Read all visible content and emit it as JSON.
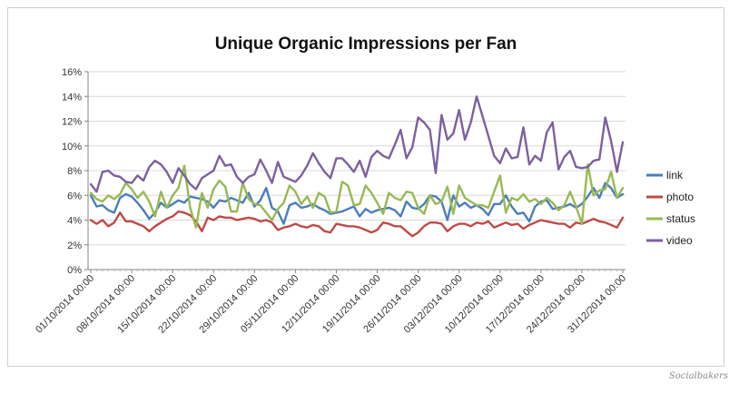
{
  "credit": "Socialbakers",
  "chart_data": {
    "type": "line",
    "title": "Unique Organic Impressions per Fan",
    "xlabel": "",
    "ylabel": "",
    "ylim": [
      0,
      16
    ],
    "y_unit": "%",
    "yticks": [
      0,
      2,
      4,
      6,
      8,
      10,
      12,
      14,
      16
    ],
    "ytick_labels": [
      "0%",
      "2%",
      "4%",
      "6%",
      "8%",
      "10%",
      "12%",
      "14%",
      "16%"
    ],
    "grid": "horizontal",
    "legend_position": "right",
    "x_tick_labels": [
      "01/10/2014 00:00",
      "08/10/2014 00:00",
      "15/10/2014 00:00",
      "22/10/2014 00:00",
      "29/10/2014 00:00",
      "05/11/2014 00:00",
      "12/11/2014 00:00",
      "19/11/2014 00:00",
      "26/11/2014 00:00",
      "03/12/2014 00:00",
      "10/12/2014 00:00",
      "17/12/2014 00:00",
      "24/12/2014 00:00",
      "31/12/2014 00:00"
    ],
    "x_start": "01/10/2014",
    "x_end": "31/12/2014",
    "series": [
      {
        "name": "link",
        "color": "#4a7ebb",
        "values": [
          6.0,
          5.1,
          5.2,
          4.8,
          4.6,
          5.8,
          6.1,
          5.9,
          5.4,
          4.8,
          4.1,
          4.6,
          5.4,
          5.0,
          5.3,
          5.6,
          5.4,
          5.9,
          5.8,
          5.7,
          5.5,
          5.0,
          5.6,
          5.5,
          5.8,
          5.6,
          5.4,
          6.2,
          5.1,
          5.6,
          6.6,
          5.0,
          4.7,
          3.7,
          5.2,
          5.4,
          5.0,
          5.1,
          5.3,
          5.0,
          4.8,
          4.5,
          4.6,
          4.7,
          4.9,
          5.1,
          4.3,
          4.9,
          4.6,
          4.8,
          4.9,
          5.0,
          4.8,
          4.3,
          5.5,
          5.0,
          4.9,
          5.3,
          6.0,
          5.9,
          5.5,
          4.0,
          6.0,
          5.1,
          5.4,
          5.0,
          5.2,
          4.9,
          4.4,
          5.3,
          5.3,
          6.0,
          5.1,
          4.5,
          4.6,
          3.9,
          5.1,
          5.5,
          5.6,
          4.9,
          5.0,
          5.1,
          5.3,
          5.0,
          5.3,
          5.9,
          6.6,
          5.8,
          7.0,
          6.6,
          5.8,
          6.1
        ]
      },
      {
        "name": "photo",
        "color": "#be4b48",
        "values": [
          4.0,
          3.7,
          4.0,
          3.5,
          3.8,
          4.6,
          3.9,
          3.9,
          3.7,
          3.5,
          3.1,
          3.5,
          3.8,
          4.1,
          4.3,
          4.7,
          4.6,
          4.4,
          3.9,
          3.1,
          4.2,
          4.0,
          4.3,
          4.2,
          4.2,
          4.0,
          4.1,
          4.2,
          4.1,
          3.9,
          4.0,
          3.8,
          3.2,
          3.4,
          3.5,
          3.7,
          3.5,
          3.4,
          3.6,
          3.5,
          3.1,
          3.0,
          3.7,
          3.6,
          3.5,
          3.5,
          3.4,
          3.2,
          3.0,
          3.2,
          3.8,
          3.7,
          3.5,
          3.5,
          3.1,
          2.7,
          3.0,
          3.5,
          3.8,
          3.8,
          3.7,
          3.1,
          3.5,
          3.7,
          3.7,
          3.5,
          3.8,
          3.7,
          3.9,
          3.4,
          3.6,
          3.8,
          3.6,
          3.7,
          3.3,
          3.6,
          3.8,
          4.0,
          3.9,
          3.8,
          3.7,
          3.7,
          3.4,
          3.8,
          3.7,
          3.9,
          4.1,
          3.9,
          3.8,
          3.6,
          3.4,
          4.2
        ]
      },
      {
        "name": "status",
        "color": "#98b954",
        "values": [
          6.2,
          5.7,
          5.5,
          6.0,
          5.7,
          6.1,
          7.0,
          6.5,
          5.8,
          6.3,
          5.5,
          4.3,
          6.3,
          5.0,
          6.0,
          6.6,
          8.4,
          5.0,
          3.4,
          6.2,
          5.0,
          6.5,
          7.2,
          6.7,
          4.7,
          4.7,
          7.0,
          5.7,
          5.3,
          5.2,
          4.6,
          4.0,
          4.9,
          5.4,
          6.8,
          6.3,
          5.3,
          5.9,
          5.0,
          6.2,
          5.9,
          4.6,
          4.7,
          7.1,
          6.8,
          5.2,
          5.3,
          6.8,
          6.2,
          5.4,
          4.5,
          6.2,
          5.8,
          5.6,
          6.3,
          6.2,
          5.0,
          4.5,
          6.0,
          5.3,
          5.5,
          6.7,
          4.5,
          6.8,
          5.8,
          5.5,
          5.2,
          5.2,
          5.0,
          6.3,
          7.6,
          4.6,
          5.8,
          5.6,
          6.1,
          5.5,
          5.7,
          5.3,
          5.8,
          5.4,
          4.8,
          5.2,
          6.3,
          5.1,
          3.7,
          8.5,
          6.0,
          6.4,
          6.5,
          7.9,
          5.8,
          6.6
        ]
      },
      {
        "name": "video",
        "color": "#7d60a0",
        "values": [
          6.9,
          6.3,
          7.9,
          8.0,
          7.6,
          7.5,
          7.1,
          7.0,
          7.6,
          7.2,
          8.3,
          8.8,
          8.5,
          7.9,
          7.0,
          8.2,
          7.6,
          6.9,
          6.5,
          7.4,
          7.7,
          8.0,
          9.2,
          8.4,
          8.5,
          7.5,
          7.0,
          7.5,
          7.7,
          8.9,
          8.0,
          7.0,
          8.7,
          7.5,
          7.3,
          7.1,
          7.6,
          8.4,
          9.4,
          8.6,
          7.9,
          7.4,
          9.0,
          9.0,
          8.5,
          7.9,
          8.8,
          7.5,
          9.1,
          9.6,
          9.2,
          9.0,
          10.1,
          11.3,
          9.0,
          9.9,
          12.3,
          11.9,
          11.3,
          7.8,
          12.5,
          10.5,
          11.0,
          12.9,
          10.5,
          11.9,
          14.0,
          12.4,
          10.8,
          9.2,
          8.6,
          9.8,
          9.0,
          9.1,
          11.5,
          8.5,
          9.2,
          8.8,
          11.1,
          11.9,
          8.1,
          9.1,
          9.6,
          8.3,
          8.2,
          8.3,
          8.8,
          8.9,
          12.3,
          10.4,
          7.9,
          10.3
        ]
      }
    ]
  }
}
